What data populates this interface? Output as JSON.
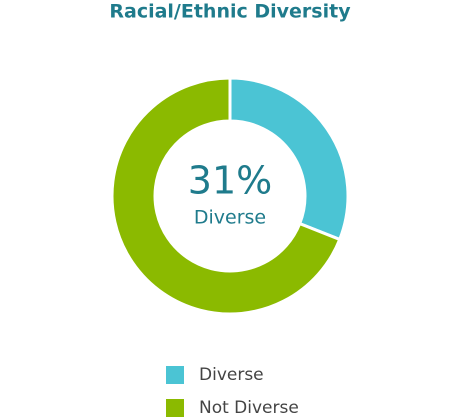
{
  "chart_data": {
    "type": "pie",
    "title": "Racial/Ethnic Diversity",
    "categories": [
      "Diverse",
      "Not Diverse"
    ],
    "values": [
      31,
      69
    ],
    "value_labels": [
      "31%",
      null
    ],
    "colors": [
      "#4bc4d4",
      "#8bba00"
    ],
    "donut": true
  }
}
